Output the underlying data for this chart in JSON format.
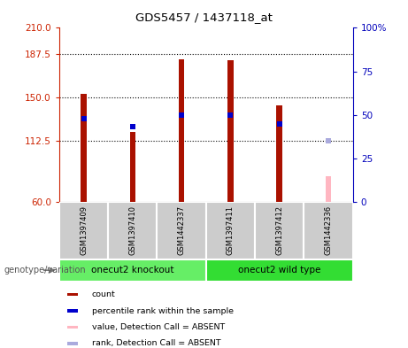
{
  "title": "GDS5457 / 1437118_at",
  "samples": [
    "GSM1397409",
    "GSM1397410",
    "GSM1442337",
    "GSM1397411",
    "GSM1397412",
    "GSM1442336"
  ],
  "groups": [
    {
      "label": "onecut2 knockout",
      "indices": [
        0,
        1,
        2
      ],
      "color": "#66EE66"
    },
    {
      "label": "onecut2 wild type",
      "indices": [
        3,
        4,
        5
      ],
      "color": "#33DD33"
    }
  ],
  "bar_values": [
    153,
    120,
    183,
    182,
    143,
    82
  ],
  "bar_colors": [
    "#AA1100",
    "#AA1100",
    "#AA1100",
    "#AA1100",
    "#AA1100",
    "#FFB6C1"
  ],
  "rank_values": [
    48,
    43,
    50,
    50,
    45,
    35
  ],
  "rank_colors": [
    "#0000CC",
    "#0000CC",
    "#0000CC",
    "#0000CC",
    "#0000CC",
    "#AAAADD"
  ],
  "bar_absent": [
    false,
    false,
    false,
    false,
    false,
    true
  ],
  "rank_absent": [
    false,
    false,
    false,
    false,
    false,
    true
  ],
  "ylim_left": [
    60,
    210
  ],
  "ylim_right": [
    0,
    100
  ],
  "yticks_left": [
    60,
    112.5,
    150,
    187.5,
    210
  ],
  "yticks_right": [
    0,
    25,
    50,
    75,
    100
  ],
  "left_tick_color": "#CC2200",
  "right_tick_color": "#0000BB",
  "bar_width": 0.12,
  "grid_dotted_values": [
    112.5,
    150,
    187.5
  ],
  "legend": [
    {
      "label": "count",
      "color": "#AA1100"
    },
    {
      "label": "percentile rank within the sample",
      "color": "#0000CC"
    },
    {
      "label": "value, Detection Call = ABSENT",
      "color": "#FFB6C1"
    },
    {
      "label": "rank, Detection Call = ABSENT",
      "color": "#AAAADD"
    }
  ],
  "genotype_label": "genotype/variation",
  "bg_color": "#FFFFFF",
  "sample_box_color": "#CCCCCC",
  "sample_box_edge": "#FFFFFF"
}
